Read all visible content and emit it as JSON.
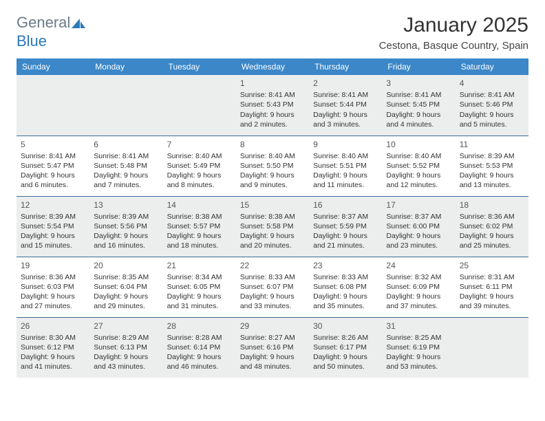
{
  "logo": {
    "text_general": "General",
    "text_blue": "Blue",
    "icon_color": "#2a7ab9"
  },
  "title": "January 2025",
  "location": "Cestona, Basque Country, Spain",
  "header_bg": "#3b87c8",
  "header_text": "#ffffff",
  "shade_bg": "#eceded",
  "border_color": "#3b6a94",
  "day_labels": [
    "Sunday",
    "Monday",
    "Tuesday",
    "Wednesday",
    "Thursday",
    "Friday",
    "Saturday"
  ],
  "weeks": [
    [
      null,
      null,
      null,
      {
        "n": "1",
        "l1": "Sunrise: 8:41 AM",
        "l2": "Sunset: 5:43 PM",
        "l3": "Daylight: 9 hours",
        "l4": "and 2 minutes."
      },
      {
        "n": "2",
        "l1": "Sunrise: 8:41 AM",
        "l2": "Sunset: 5:44 PM",
        "l3": "Daylight: 9 hours",
        "l4": "and 3 minutes."
      },
      {
        "n": "3",
        "l1": "Sunrise: 8:41 AM",
        "l2": "Sunset: 5:45 PM",
        "l3": "Daylight: 9 hours",
        "l4": "and 4 minutes."
      },
      {
        "n": "4",
        "l1": "Sunrise: 8:41 AM",
        "l2": "Sunset: 5:46 PM",
        "l3": "Daylight: 9 hours",
        "l4": "and 5 minutes."
      }
    ],
    [
      {
        "n": "5",
        "l1": "Sunrise: 8:41 AM",
        "l2": "Sunset: 5:47 PM",
        "l3": "Daylight: 9 hours",
        "l4": "and 6 minutes."
      },
      {
        "n": "6",
        "l1": "Sunrise: 8:41 AM",
        "l2": "Sunset: 5:48 PM",
        "l3": "Daylight: 9 hours",
        "l4": "and 7 minutes."
      },
      {
        "n": "7",
        "l1": "Sunrise: 8:40 AM",
        "l2": "Sunset: 5:49 PM",
        "l3": "Daylight: 9 hours",
        "l4": "and 8 minutes."
      },
      {
        "n": "8",
        "l1": "Sunrise: 8:40 AM",
        "l2": "Sunset: 5:50 PM",
        "l3": "Daylight: 9 hours",
        "l4": "and 9 minutes."
      },
      {
        "n": "9",
        "l1": "Sunrise: 8:40 AM",
        "l2": "Sunset: 5:51 PM",
        "l3": "Daylight: 9 hours",
        "l4": "and 11 minutes."
      },
      {
        "n": "10",
        "l1": "Sunrise: 8:40 AM",
        "l2": "Sunset: 5:52 PM",
        "l3": "Daylight: 9 hours",
        "l4": "and 12 minutes."
      },
      {
        "n": "11",
        "l1": "Sunrise: 8:39 AM",
        "l2": "Sunset: 5:53 PM",
        "l3": "Daylight: 9 hours",
        "l4": "and 13 minutes."
      }
    ],
    [
      {
        "n": "12",
        "l1": "Sunrise: 8:39 AM",
        "l2": "Sunset: 5:54 PM",
        "l3": "Daylight: 9 hours",
        "l4": "and 15 minutes."
      },
      {
        "n": "13",
        "l1": "Sunrise: 8:39 AM",
        "l2": "Sunset: 5:56 PM",
        "l3": "Daylight: 9 hours",
        "l4": "and 16 minutes."
      },
      {
        "n": "14",
        "l1": "Sunrise: 8:38 AM",
        "l2": "Sunset: 5:57 PM",
        "l3": "Daylight: 9 hours",
        "l4": "and 18 minutes."
      },
      {
        "n": "15",
        "l1": "Sunrise: 8:38 AM",
        "l2": "Sunset: 5:58 PM",
        "l3": "Daylight: 9 hours",
        "l4": "and 20 minutes."
      },
      {
        "n": "16",
        "l1": "Sunrise: 8:37 AM",
        "l2": "Sunset: 5:59 PM",
        "l3": "Daylight: 9 hours",
        "l4": "and 21 minutes."
      },
      {
        "n": "17",
        "l1": "Sunrise: 8:37 AM",
        "l2": "Sunset: 6:00 PM",
        "l3": "Daylight: 9 hours",
        "l4": "and 23 minutes."
      },
      {
        "n": "18",
        "l1": "Sunrise: 8:36 AM",
        "l2": "Sunset: 6:02 PM",
        "l3": "Daylight: 9 hours",
        "l4": "and 25 minutes."
      }
    ],
    [
      {
        "n": "19",
        "l1": "Sunrise: 8:36 AM",
        "l2": "Sunset: 6:03 PM",
        "l3": "Daylight: 9 hours",
        "l4": "and 27 minutes."
      },
      {
        "n": "20",
        "l1": "Sunrise: 8:35 AM",
        "l2": "Sunset: 6:04 PM",
        "l3": "Daylight: 9 hours",
        "l4": "and 29 minutes."
      },
      {
        "n": "21",
        "l1": "Sunrise: 8:34 AM",
        "l2": "Sunset: 6:05 PM",
        "l3": "Daylight: 9 hours",
        "l4": "and 31 minutes."
      },
      {
        "n": "22",
        "l1": "Sunrise: 8:33 AM",
        "l2": "Sunset: 6:07 PM",
        "l3": "Daylight: 9 hours",
        "l4": "and 33 minutes."
      },
      {
        "n": "23",
        "l1": "Sunrise: 8:33 AM",
        "l2": "Sunset: 6:08 PM",
        "l3": "Daylight: 9 hours",
        "l4": "and 35 minutes."
      },
      {
        "n": "24",
        "l1": "Sunrise: 8:32 AM",
        "l2": "Sunset: 6:09 PM",
        "l3": "Daylight: 9 hours",
        "l4": "and 37 minutes."
      },
      {
        "n": "25",
        "l1": "Sunrise: 8:31 AM",
        "l2": "Sunset: 6:11 PM",
        "l3": "Daylight: 9 hours",
        "l4": "and 39 minutes."
      }
    ],
    [
      {
        "n": "26",
        "l1": "Sunrise: 8:30 AM",
        "l2": "Sunset: 6:12 PM",
        "l3": "Daylight: 9 hours",
        "l4": "and 41 minutes."
      },
      {
        "n": "27",
        "l1": "Sunrise: 8:29 AM",
        "l2": "Sunset: 6:13 PM",
        "l3": "Daylight: 9 hours",
        "l4": "and 43 minutes."
      },
      {
        "n": "28",
        "l1": "Sunrise: 8:28 AM",
        "l2": "Sunset: 6:14 PM",
        "l3": "Daylight: 9 hours",
        "l4": "and 46 minutes."
      },
      {
        "n": "29",
        "l1": "Sunrise: 8:27 AM",
        "l2": "Sunset: 6:16 PM",
        "l3": "Daylight: 9 hours",
        "l4": "and 48 minutes."
      },
      {
        "n": "30",
        "l1": "Sunrise: 8:26 AM",
        "l2": "Sunset: 6:17 PM",
        "l3": "Daylight: 9 hours",
        "l4": "and 50 minutes."
      },
      {
        "n": "31",
        "l1": "Sunrise: 8:25 AM",
        "l2": "Sunset: 6:19 PM",
        "l3": "Daylight: 9 hours",
        "l4": "and 53 minutes."
      },
      null
    ]
  ]
}
